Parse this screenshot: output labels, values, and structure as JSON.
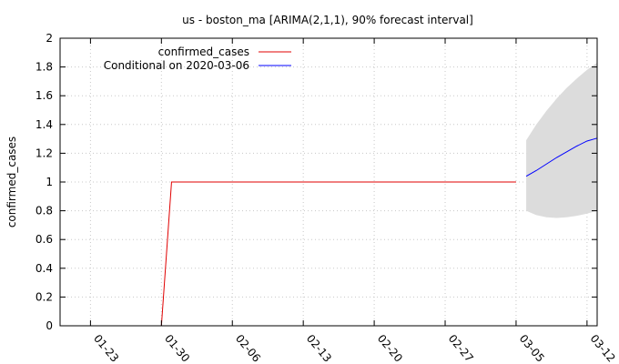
{
  "chart_data": {
    "type": "line",
    "title": "us - boston_ma [ARIMA(2,1,1), 90% forecast interval]",
    "xlabel": "",
    "ylabel": "confirmed_cases",
    "x_range": [
      "2020-01-20",
      "2020-03-13"
    ],
    "ylim": [
      0,
      2
    ],
    "yticks": [
      0,
      0.2,
      0.4,
      0.6,
      0.8,
      1,
      1.2,
      1.4,
      1.6,
      1.8,
      2
    ],
    "ytick_labels": [
      "0",
      "0.2",
      "0.4",
      "0.6",
      "0.8",
      "1",
      "1.2",
      "1.4",
      "1.6",
      "1.8",
      "2"
    ],
    "xticks": [
      "2020-01-23",
      "2020-01-30",
      "2020-02-06",
      "2020-02-13",
      "2020-02-20",
      "2020-02-27",
      "2020-03-05",
      "2020-03-12"
    ],
    "xtick_labels": [
      "01-23",
      "01-30",
      "02-06",
      "02-13",
      "02-20",
      "02-27",
      "03-05",
      "03-12"
    ],
    "grid": true,
    "legend_position": "top-left",
    "series": [
      {
        "name": "confirmed_cases",
        "color": "#e00000",
        "points": [
          [
            "2020-01-30",
            0
          ],
          [
            "2020-01-31",
            1
          ],
          [
            "2020-03-05",
            1
          ]
        ]
      },
      {
        "name": "Conditional on 2020-03-06",
        "color": "#0000ff",
        "points": [
          [
            "2020-03-06",
            1.04
          ],
          [
            "2020-03-07",
            1.08
          ],
          [
            "2020-03-08",
            1.125
          ],
          [
            "2020-03-09",
            1.17
          ],
          [
            "2020-03-10",
            1.21
          ],
          [
            "2020-03-11",
            1.25
          ],
          [
            "2020-03-12",
            1.285
          ],
          [
            "2020-03-13",
            1.305
          ]
        ]
      }
    ],
    "interval": {
      "color": "#dcdcdc",
      "lower": [
        [
          "2020-03-06",
          0.8
        ],
        [
          "2020-03-07",
          0.77
        ],
        [
          "2020-03-08",
          0.755
        ],
        [
          "2020-03-09",
          0.75
        ],
        [
          "2020-03-10",
          0.755
        ],
        [
          "2020-03-11",
          0.765
        ],
        [
          "2020-03-12",
          0.78
        ],
        [
          "2020-03-13",
          0.8
        ]
      ],
      "upper": [
        [
          "2020-03-06",
          1.29
        ],
        [
          "2020-03-07",
          1.4
        ],
        [
          "2020-03-08",
          1.495
        ],
        [
          "2020-03-09",
          1.58
        ],
        [
          "2020-03-10",
          1.655
        ],
        [
          "2020-03-11",
          1.72
        ],
        [
          "2020-03-12",
          1.78
        ],
        [
          "2020-03-13",
          1.83
        ]
      ]
    }
  }
}
